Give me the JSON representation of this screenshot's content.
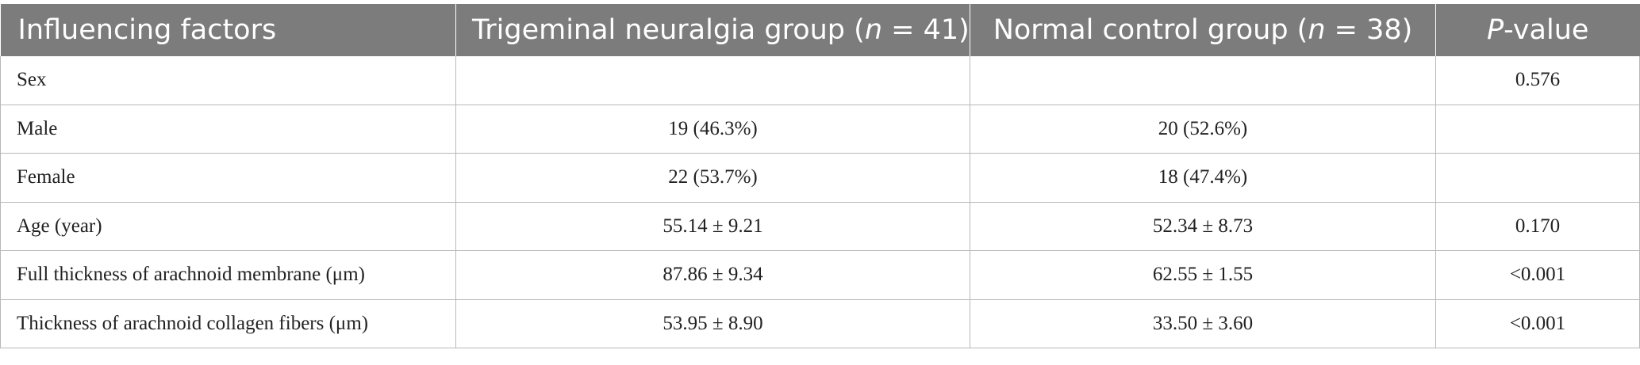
{
  "table": {
    "header": {
      "factors": "Influencing factors",
      "tn_group_prefix": "Trigeminal neuralgia group (",
      "tn_group_n": "n",
      "tn_group_suffix": " = 41)",
      "control_group_prefix": "Normal control group (",
      "control_group_n": "n",
      "control_group_suffix": " = 38)",
      "pvalue_p": "P",
      "pvalue_suffix": "-value"
    },
    "rows": [
      {
        "factor": "Sex",
        "tn": "",
        "control": "",
        "p": "0.576"
      },
      {
        "factor": "Male",
        "tn": "19 (46.3%)",
        "control": "20 (52.6%)",
        "p": ""
      },
      {
        "factor": "Female",
        "tn": "22 (53.7%)",
        "control": "18 (47.4%)",
        "p": ""
      },
      {
        "factor": "Age (year)",
        "tn": "55.14 ± 9.21",
        "control": "52.34 ± 8.73",
        "p": "0.170"
      },
      {
        "factor": "Full thickness of arachnoid membrane (μm)",
        "tn": "87.86 ± 9.34",
        "control": "62.55 ± 1.55",
        "p": "<0.001"
      },
      {
        "factor": "Thickness of arachnoid collagen fibers (μm)",
        "tn": "53.95 ± 8.90",
        "control": "33.50 ± 3.60",
        "p": "<0.001"
      }
    ]
  }
}
